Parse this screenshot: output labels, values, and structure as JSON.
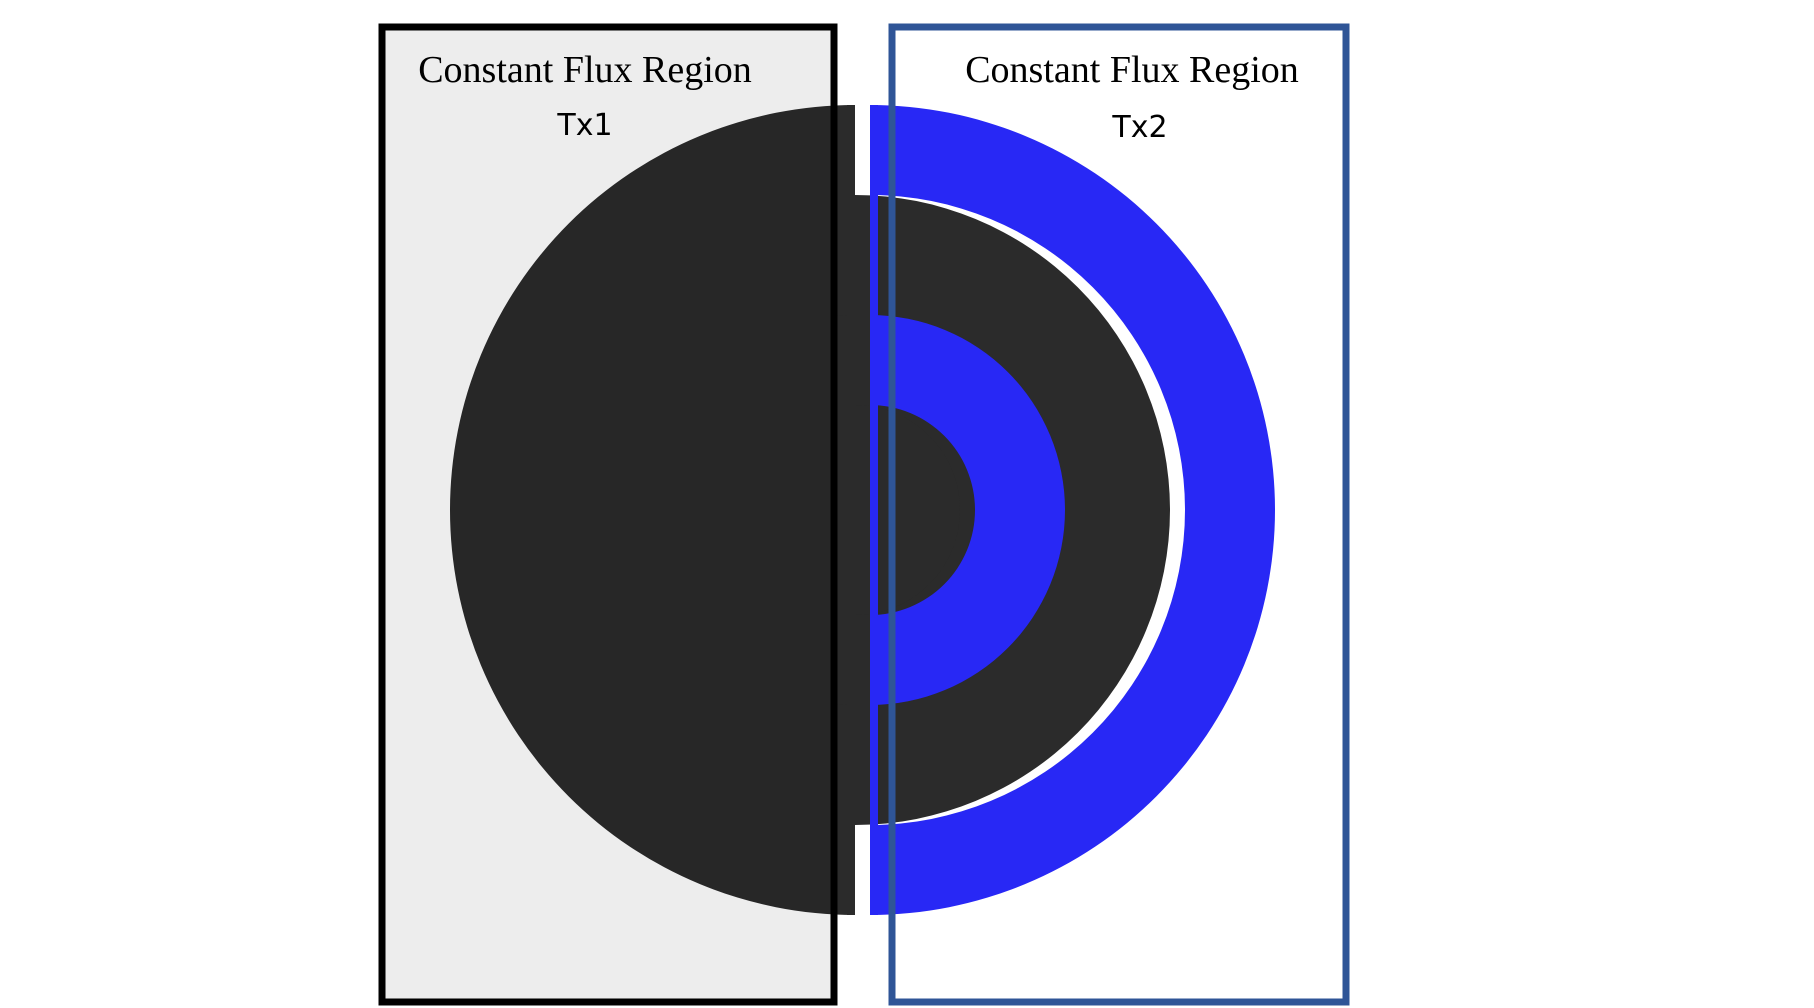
{
  "regions": [
    {
      "title": "Constant Flux Region",
      "coil_label": "Tx1",
      "border_color": "#000000"
    },
    {
      "title": "Constant Flux Region",
      "coil_label": "Tx2",
      "border_color": "#2f5597"
    }
  ],
  "coils": [
    {
      "name": "Tx1",
      "color": "#2b2b2b"
    },
    {
      "name": "Tx2",
      "color": "#2828f5"
    }
  ]
}
